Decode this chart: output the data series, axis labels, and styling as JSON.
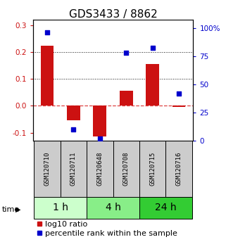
{
  "title": "GDS3433 / 8862",
  "samples": [
    "GSM120710",
    "GSM120711",
    "GSM120648",
    "GSM120708",
    "GSM120715",
    "GSM120716"
  ],
  "log10_ratio": [
    0.225,
    -0.055,
    -0.115,
    0.055,
    0.155,
    -0.005
  ],
  "percentile_rank": [
    96,
    10,
    2,
    78,
    82,
    42
  ],
  "time_groups": [
    {
      "label": "1 h",
      "indices": [
        0,
        1
      ],
      "color": "#ccffcc"
    },
    {
      "label": "4 h",
      "indices": [
        2,
        3
      ],
      "color": "#88ee88"
    },
    {
      "label": "24 h",
      "indices": [
        4,
        5
      ],
      "color": "#33cc33"
    }
  ],
  "bar_color": "#cc1111",
  "dot_color": "#0000cc",
  "left_ylim": [
    -0.13,
    0.32
  ],
  "right_ylim": [
    0,
    107
  ],
  "left_yticks": [
    -0.1,
    0.0,
    0.1,
    0.2,
    0.3
  ],
  "right_yticks": [
    0,
    25,
    50,
    75,
    100
  ],
  "right_yticklabels": [
    "0",
    "25",
    "50",
    "75",
    "100%"
  ],
  "hline_zero_color": "#dd4444",
  "hline_dotted_color": "#111111",
  "bar_width": 0.5,
  "title_fontsize": 11,
  "tick_fontsize": 7.5,
  "legend_fontsize": 8,
  "time_label_fontsize": 10,
  "gsm_label_fontsize": 6.5,
  "background_color": "#ffffff",
  "sample_box_color": "#cccccc"
}
